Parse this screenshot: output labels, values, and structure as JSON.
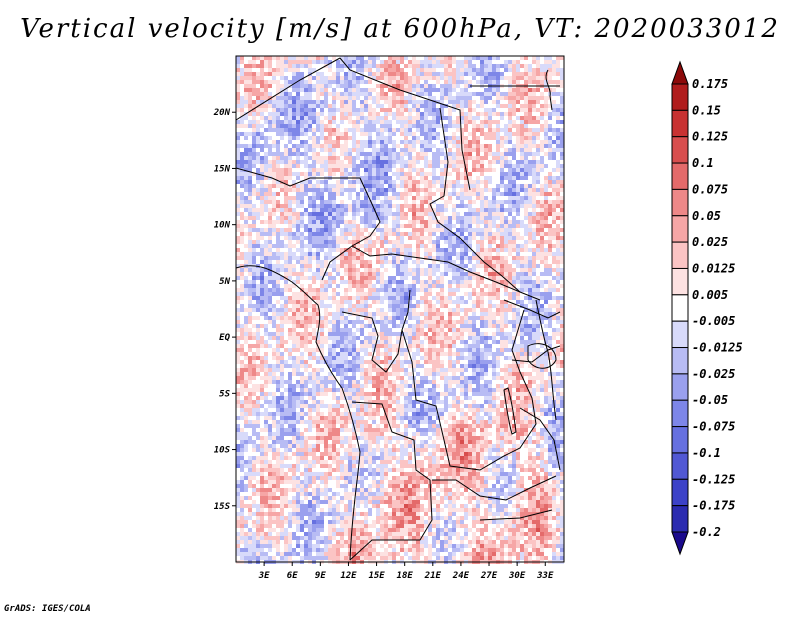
{
  "title": "Vertical velocity [m/s] at 600hPa, VT: 2020033012",
  "credit": "GrADS: IGES/COLA",
  "map": {
    "lon_range": [
      0,
      35
    ],
    "lat_range": [
      -20,
      25
    ],
    "lat_ticks": [
      {
        "value": 20,
        "label": "20N"
      },
      {
        "value": 15,
        "label": "15N"
      },
      {
        "value": 10,
        "label": "10N"
      },
      {
        "value": 5,
        "label": "5N"
      },
      {
        "value": 0,
        "label": "EQ"
      },
      {
        "value": -5,
        "label": "5S"
      },
      {
        "value": -10,
        "label": "10S"
      },
      {
        "value": -15,
        "label": "15S"
      }
    ],
    "lon_ticks": [
      {
        "value": 3,
        "label": "3E"
      },
      {
        "value": 6,
        "label": "6E"
      },
      {
        "value": 9,
        "label": "9E"
      },
      {
        "value": 12,
        "label": "12E"
      },
      {
        "value": 15,
        "label": "15E"
      },
      {
        "value": 18,
        "label": "18E"
      },
      {
        "value": 21,
        "label": "21E"
      },
      {
        "value": 24,
        "label": "24E"
      },
      {
        "value": 27,
        "label": "27E"
      },
      {
        "value": 30,
        "label": "30E"
      },
      {
        "value": 33,
        "label": "33E"
      }
    ]
  },
  "colorbar": {
    "colors": [
      "#1a0a8c",
      "#2b2bb0",
      "#3c42c8",
      "#5158d4",
      "#6670e0",
      "#7d86e8",
      "#9aa0ee",
      "#b8bcf4",
      "#d8dafa",
      "#ffffff",
      "#fde2e2",
      "#fbc4c4",
      "#f6a6a6",
      "#ee8888",
      "#e46a6a",
      "#d84e4e",
      "#c83232",
      "#b01c1c",
      "#8c0a0a"
    ],
    "labels": [
      "0.175",
      "0.15",
      "0.125",
      "0.1",
      "0.075",
      "0.05",
      "0.025",
      "0.0125",
      "0.005",
      "-0.005",
      "-0.0125",
      "-0.025",
      "-0.05",
      "-0.075",
      "-0.1",
      "-0.125",
      "-0.175",
      "-0.2"
    ]
  }
}
